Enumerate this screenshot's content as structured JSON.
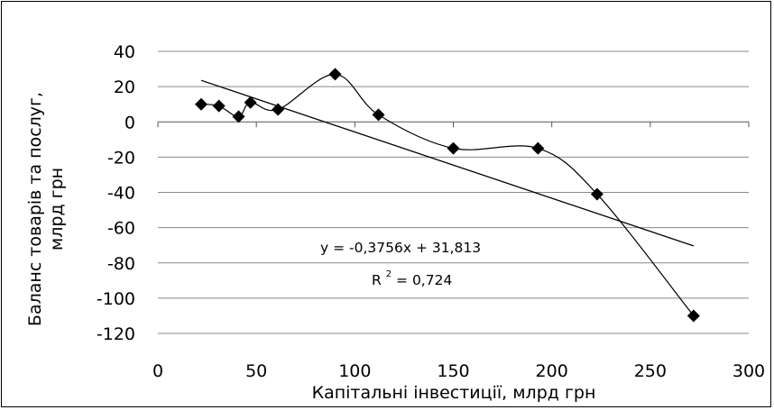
{
  "chart_data": {
    "type": "scatter",
    "xlabel": "Капітальні інвестиції, млрд  грн",
    "ylabel_line1": "Баланс товарів та послуг,",
    "ylabel_line2": "млрд  грн",
    "xlim": [
      0,
      300
    ],
    "ylim": [
      -120,
      40
    ],
    "x_ticks": [
      0,
      50,
      100,
      150,
      200,
      250,
      300
    ],
    "y_ticks": [
      40,
      20,
      0,
      -20,
      -40,
      -60,
      -80,
      -100,
      -120
    ],
    "grid": "horizontal",
    "series": [
      {
        "points": [
          {
            "x": 22,
            "y": 10
          },
          {
            "x": 31,
            "y": 9
          },
          {
            "x": 41,
            "y": 3
          },
          {
            "x": 47,
            "y": 11
          },
          {
            "x": 61,
            "y": 7
          },
          {
            "x": 90,
            "y": 27
          },
          {
            "x": 112,
            "y": 4
          },
          {
            "x": 150,
            "y": -15
          },
          {
            "x": 193,
            "y": -15
          },
          {
            "x": 223,
            "y": -41
          },
          {
            "x": 272,
            "y": -110
          }
        ]
      }
    ],
    "trendline": {
      "slope": -0.3756,
      "intercept": 31.813,
      "x_range": [
        22,
        272
      ],
      "equation": "y = -0,3756x + 31,813",
      "r2_prefix": "R",
      "r2_sup": "2",
      "r2_suffix": " = 0,724"
    }
  }
}
